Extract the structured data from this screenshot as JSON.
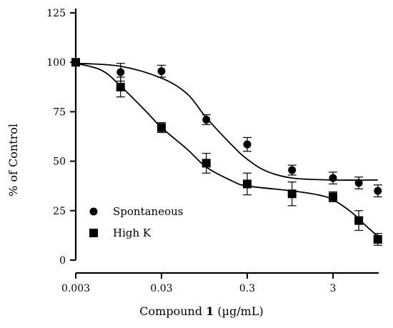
{
  "chart_data": {
    "type": "scatter",
    "title": "",
    "xscale": "log",
    "xlim": [
      0.003,
      11
    ],
    "ylim": [
      0,
      125
    ],
    "xticks": [
      0.003,
      0.03,
      0.3,
      3
    ],
    "xtick_labels": [
      "0.003",
      "0.03",
      "0.3",
      "3"
    ],
    "yticks": [
      0,
      25,
      50,
      75,
      100,
      125
    ],
    "ytick_labels": [
      "0",
      "25",
      "50",
      "75",
      "100",
      "125"
    ],
    "xlabel_prefix": "Compound ",
    "xlabel_bold": "1",
    "xlabel_suffix": " (µg/mL)",
    "ylabel": "% of Control",
    "grid": false,
    "legend_position": "bottom-left",
    "series": [
      {
        "name": "Spontaneous",
        "marker": "circle",
        "color": "#000000",
        "x": [
          0.003,
          0.01,
          0.03,
          0.1,
          0.3,
          1,
          3,
          6,
          10
        ],
        "y": [
          100,
          95,
          95.5,
          71,
          58.5,
          45.5,
          41.5,
          39,
          35
        ],
        "error": [
          0,
          4.5,
          3,
          2.5,
          3.5,
          2.5,
          3,
          3,
          3
        ],
        "fit_curve": [
          [
            0.003,
            99.5
          ],
          [
            0.01,
            98
          ],
          [
            0.03,
            92
          ],
          [
            0.06,
            84
          ],
          [
            0.1,
            72
          ],
          [
            0.2,
            58
          ],
          [
            0.3,
            51
          ],
          [
            0.5,
            45
          ],
          [
            1,
            41.5
          ],
          [
            3,
            40.5
          ],
          [
            10,
            40.5
          ]
        ]
      },
      {
        "name": "High K",
        "marker": "square",
        "color": "#000000",
        "x": [
          0.003,
          0.01,
          0.03,
          0.1,
          0.3,
          1,
          3,
          6,
          10
        ],
        "y": [
          100,
          87.5,
          67,
          49,
          38.5,
          33.5,
          32,
          20,
          10.5
        ],
        "error": [
          0,
          5,
          2.5,
          5,
          5.5,
          6,
          2.5,
          5,
          3
        ],
        "fit_curve": [
          [
            0.003,
            99.5
          ],
          [
            0.006,
            96
          ],
          [
            0.01,
            88
          ],
          [
            0.02,
            75
          ],
          [
            0.03,
            67
          ],
          [
            0.06,
            56
          ],
          [
            0.1,
            47
          ],
          [
            0.2,
            40
          ],
          [
            0.3,
            37.5
          ],
          [
            1,
            35
          ],
          [
            2,
            33
          ],
          [
            3,
            30.5
          ],
          [
            5,
            24
          ],
          [
            7,
            18
          ],
          [
            10,
            12
          ]
        ]
      }
    ]
  }
}
